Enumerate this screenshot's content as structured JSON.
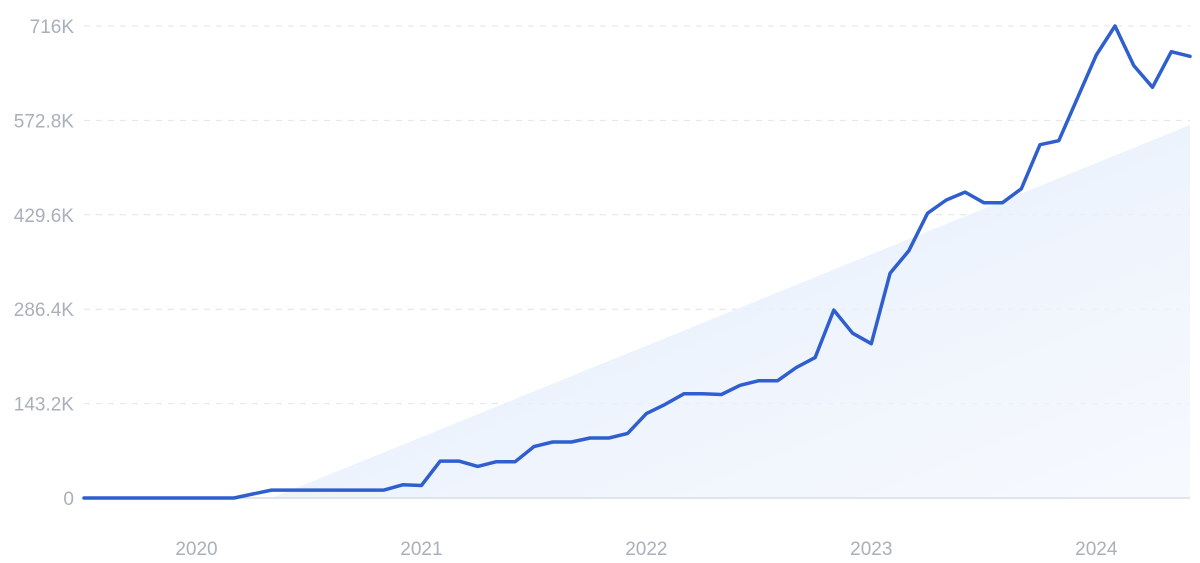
{
  "chart_data": {
    "type": "line",
    "title": "",
    "xlabel": "",
    "ylabel": "",
    "x_ticks": [
      "2020",
      "2021",
      "2022",
      "2023",
      "2024"
    ],
    "y_ticks": [
      "0",
      "143.2K",
      "286.4K",
      "429.6K",
      "572.8K",
      "716K"
    ],
    "ylim": [
      0,
      716000
    ],
    "xlim": [
      "2019-07",
      "2024-06"
    ],
    "grid": true,
    "trend": {
      "start": {
        "x": "2020-05",
        "y": 0
      },
      "end": {
        "x": "2024-06",
        "y": 566000
      }
    },
    "series": [
      {
        "x": [
          "2019-07",
          "2019-08",
          "2019-09",
          "2019-10",
          "2019-11",
          "2019-12",
          "2020-01",
          "2020-02",
          "2020-03",
          "2020-04",
          "2020-05",
          "2020-06",
          "2020-07",
          "2020-08",
          "2020-09",
          "2020-10",
          "2020-11",
          "2020-12",
          "2021-01",
          "2021-02",
          "2021-03",
          "2021-04",
          "2021-05",
          "2021-06",
          "2021-07",
          "2021-08",
          "2021-09",
          "2021-10",
          "2021-11",
          "2021-12",
          "2022-01",
          "2022-02",
          "2022-03",
          "2022-04",
          "2022-05",
          "2022-06",
          "2022-07",
          "2022-08",
          "2022-09",
          "2022-10",
          "2022-11",
          "2022-12",
          "2023-01",
          "2023-02",
          "2023-03",
          "2023-04",
          "2023-05",
          "2023-06",
          "2023-07",
          "2023-08",
          "2023-09",
          "2023-10",
          "2023-11",
          "2023-12",
          "2024-01",
          "2024-02",
          "2024-03",
          "2024-04",
          "2024-05",
          "2024-06"
        ],
        "values": [
          0,
          0,
          0,
          0,
          0,
          0,
          0,
          0,
          0,
          6000,
          12000,
          12000,
          12000,
          12000,
          12000,
          12000,
          12000,
          20000,
          19000,
          56000,
          56000,
          48000,
          55000,
          55000,
          78000,
          85000,
          85000,
          91000,
          91000,
          98000,
          128000,
          142000,
          158000,
          158000,
          157000,
          171000,
          178000,
          178000,
          198000,
          213000,
          285000,
          250000,
          234000,
          341000,
          375000,
          432000,
          452000,
          464000,
          448000,
          448000,
          469000,
          536000,
          542000,
          607000,
          672000,
          716000,
          656000,
          623000,
          677000,
          670000
        ]
      }
    ]
  }
}
